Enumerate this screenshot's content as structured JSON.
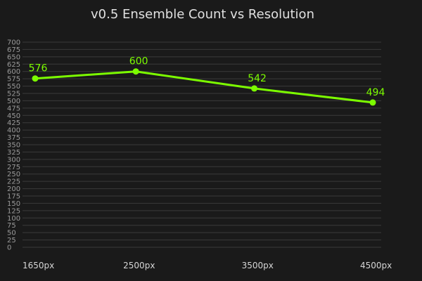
{
  "chart_data": {
    "type": "line",
    "title": "v0.5 Ensemble Count vs Resolution",
    "xlabel": "",
    "ylabel": "",
    "categories": [
      "1650px",
      "2500px",
      "3500px",
      "4500px"
    ],
    "x": [
      1650,
      2500,
      3500,
      4500
    ],
    "series": [
      {
        "values": [
          576,
          600,
          542,
          494
        ]
      }
    ],
    "data_labels": [
      "576",
      "600",
      "542",
      "494"
    ],
    "ylim": [
      0,
      700
    ],
    "ytick_step": 25,
    "xlim": [
      1650,
      4500
    ],
    "grid": true,
    "legend": "none",
    "colors": {
      "background": "#1a1a1a",
      "line": "#7cfc00",
      "grid": "#3a3a3a",
      "label": "#7cfc00"
    }
  }
}
